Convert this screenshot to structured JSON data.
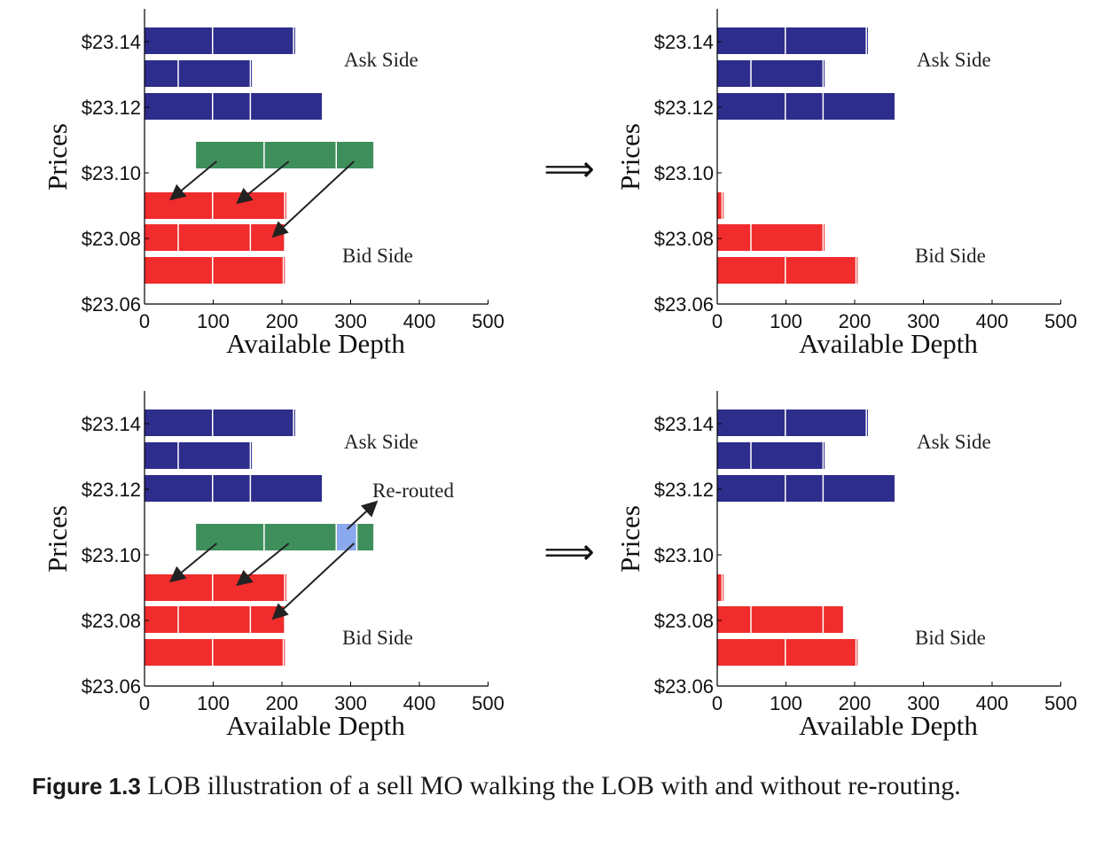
{
  "figure": {
    "caption_label": "Figure 1.3",
    "caption_text": "LOB illustration of a sell MO walking the LOB with and without re-routing.",
    "transition_symbol": "⟹"
  },
  "colors": {
    "ask": "#2d2d8c",
    "bid": "#f02c2c",
    "order": "#3f8f5c",
    "rerouted": "#8aa9ee",
    "axis": "#000000"
  },
  "chart_data": [
    {
      "type": "bar",
      "orientation": "horizontal",
      "stacked": true,
      "xlabel": "Available Depth",
      "ylabel": "Prices",
      "xlim": [
        0,
        500
      ],
      "xticks": [
        0,
        100,
        200,
        300,
        400,
        500
      ],
      "yticks": [
        "$23.14",
        "$23.12",
        "$23.10",
        "$23.08",
        "$23.06"
      ],
      "annotations": [
        "Ask Side",
        "Bid Side"
      ],
      "rows": [
        {
          "price": "$23.14",
          "side": "ask",
          "segments": [
            100,
            118,
            3
          ]
        },
        {
          "price": "$23.13",
          "side": "ask",
          "segments": [
            50,
            105,
            3
          ]
        },
        {
          "price": "$23.12",
          "side": "ask",
          "segments": [
            100,
            55,
            105
          ]
        },
        {
          "price": "$23.10",
          "side": "order",
          "offset": 75,
          "segments": [
            100,
            105,
            55
          ]
        },
        {
          "price": "$23.09",
          "side": "bid",
          "segments": [
            100,
            105,
            3
          ]
        },
        {
          "price": "$23.08",
          "side": "bid",
          "segments": [
            50,
            105,
            50
          ]
        },
        {
          "price": "$23.07",
          "side": "bid",
          "segments": [
            100,
            103,
            3
          ]
        }
      ],
      "arrows": [
        "order fills bids at $23.09",
        "order fills bids at $23.09",
        "order fills bids at $23.08"
      ]
    },
    {
      "type": "bar",
      "orientation": "horizontal",
      "stacked": true,
      "xlabel": "Available Depth",
      "ylabel": "Prices",
      "xlim": [
        0,
        500
      ],
      "xticks": [
        0,
        100,
        200,
        300,
        400,
        500
      ],
      "yticks": [
        "$23.14",
        "$23.12",
        "$23.10",
        "$23.08",
        "$23.06"
      ],
      "annotations": [
        "Ask Side",
        "Bid Side"
      ],
      "rows": [
        {
          "price": "$23.14",
          "side": "ask",
          "segments": [
            100,
            118,
            3
          ]
        },
        {
          "price": "$23.13",
          "side": "ask",
          "segments": [
            50,
            105,
            3
          ]
        },
        {
          "price": "$23.12",
          "side": "ask",
          "segments": [
            100,
            55,
            105
          ]
        },
        {
          "price": "$23.09",
          "side": "bid",
          "segments": [
            0,
            8,
            3
          ]
        },
        {
          "price": "$23.08",
          "side": "bid",
          "segments": [
            50,
            105,
            3
          ]
        },
        {
          "price": "$23.07",
          "side": "bid",
          "segments": [
            100,
            103,
            3
          ]
        }
      ]
    },
    {
      "type": "bar",
      "orientation": "horizontal",
      "stacked": true,
      "xlabel": "Available Depth",
      "ylabel": "Prices",
      "xlim": [
        0,
        500
      ],
      "xticks": [
        0,
        100,
        200,
        300,
        400,
        500
      ],
      "yticks": [
        "$23.14",
        "$23.12",
        "$23.10",
        "$23.08",
        "$23.06"
      ],
      "annotations": [
        "Ask Side",
        "Re-routed",
        "Bid Side"
      ],
      "rows": [
        {
          "price": "$23.14",
          "side": "ask",
          "segments": [
            100,
            118,
            3
          ]
        },
        {
          "price": "$23.13",
          "side": "ask",
          "segments": [
            50,
            105,
            3
          ]
        },
        {
          "price": "$23.12",
          "side": "ask",
          "segments": [
            100,
            55,
            105
          ]
        },
        {
          "price": "$23.10",
          "side": "order",
          "offset": 75,
          "segments": [
            100,
            105,
            30,
            25
          ]
        },
        {
          "price": "$23.09",
          "side": "bid",
          "segments": [
            100,
            105,
            3
          ]
        },
        {
          "price": "$23.08",
          "side": "bid",
          "segments": [
            50,
            105,
            50
          ]
        },
        {
          "price": "$23.07",
          "side": "bid",
          "segments": [
            100,
            103,
            3
          ]
        }
      ],
      "rerouted_segment_index": 2,
      "arrows": [
        "order fills bids at $23.09",
        "order fills bids at $23.09",
        "order fills bids at $23.08",
        "part of order re-routed"
      ]
    },
    {
      "type": "bar",
      "orientation": "horizontal",
      "stacked": true,
      "xlabel": "Available Depth",
      "ylabel": "Prices",
      "xlim": [
        0,
        500
      ],
      "xticks": [
        0,
        100,
        200,
        300,
        400,
        500
      ],
      "yticks": [
        "$23.14",
        "$23.12",
        "$23.10",
        "$23.08",
        "$23.06"
      ],
      "annotations": [
        "Ask Side",
        "Bid Side"
      ],
      "rows": [
        {
          "price": "$23.14",
          "side": "ask",
          "segments": [
            100,
            118,
            3
          ]
        },
        {
          "price": "$23.13",
          "side": "ask",
          "segments": [
            50,
            105,
            3
          ]
        },
        {
          "price": "$23.12",
          "side": "ask",
          "segments": [
            100,
            55,
            105
          ]
        },
        {
          "price": "$23.09",
          "side": "bid",
          "segments": [
            0,
            8,
            3
          ]
        },
        {
          "price": "$23.08",
          "side": "bid",
          "segments": [
            50,
            105,
            30
          ]
        },
        {
          "price": "$23.07",
          "side": "bid",
          "segments": [
            100,
            103,
            3
          ]
        }
      ]
    }
  ]
}
